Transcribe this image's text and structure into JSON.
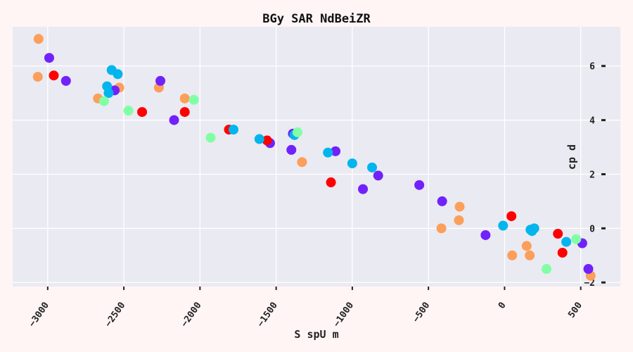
{
  "chart_data": {
    "type": "scatter",
    "title": "BGy SAR NdBeiZR",
    "xlabel": "S spU m",
    "ylabel": "cp d",
    "xlim": [
      -3230,
      760
    ],
    "ylim": [
      -2.15,
      7.45
    ],
    "x_ticks": [
      -3000,
      -2500,
      -2000,
      -1500,
      -1000,
      -500,
      0,
      500
    ],
    "x_tick_labels": [
      "−3000",
      "−2500",
      "−2000",
      "−1500",
      "−1000",
      "−500",
      "0",
      "500"
    ],
    "y_ticks": [
      -2,
      0,
      2,
      4,
      6
    ],
    "y_tick_labels": [
      "−2",
      "0",
      "2",
      "4",
      "6"
    ],
    "grid": true,
    "y_axis_side": "right",
    "background": "#eaeaf2",
    "page_background": "#fff5f5",
    "series": [
      {
        "color": "#fb9f5a",
        "points": [
          [
            -3060,
            7.0
          ],
          [
            -3065,
            5.6
          ],
          [
            -2670,
            4.8
          ],
          [
            -2530,
            5.2
          ],
          [
            -2270,
            5.2
          ],
          [
            -2100,
            4.8
          ],
          [
            -1330,
            2.45
          ],
          [
            -415,
            0.0
          ],
          [
            -300,
            0.3
          ],
          [
            -295,
            0.8
          ],
          [
            50,
            -1.0
          ],
          [
            145,
            -0.65
          ],
          [
            165,
            -1.0
          ],
          [
            565,
            -1.75
          ]
        ]
      },
      {
        "color": "#7122fa",
        "points": [
          [
            -2990,
            6.3
          ],
          [
            -2880,
            5.45
          ],
          [
            -2560,
            5.1
          ],
          [
            -2260,
            5.45
          ],
          [
            -2170,
            4.0
          ],
          [
            -1540,
            3.15
          ],
          [
            -1390,
            3.5
          ],
          [
            -1400,
            2.9
          ],
          [
            -1110,
            2.85
          ],
          [
            -930,
            1.45
          ],
          [
            -830,
            1.95
          ],
          [
            -560,
            1.6
          ],
          [
            -410,
            1.0
          ],
          [
            -125,
            -0.25
          ],
          [
            510,
            -0.55
          ],
          [
            550,
            -1.5
          ]
        ]
      },
      {
        "color": "#ff0000",
        "points": [
          [
            -2960,
            5.65
          ],
          [
            -2380,
            4.3
          ],
          [
            -2100,
            4.3
          ],
          [
            -1810,
            3.65
          ],
          [
            -1560,
            3.25
          ],
          [
            -1140,
            1.7
          ],
          [
            45,
            0.45
          ],
          [
            350,
            -0.2
          ],
          [
            380,
            -0.9
          ]
        ]
      },
      {
        "color": "#02b5ec",
        "points": [
          [
            -2580,
            5.85
          ],
          [
            -2540,
            5.7
          ],
          [
            -2610,
            5.25
          ],
          [
            -2600,
            5.0
          ],
          [
            -1780,
            3.65
          ],
          [
            -1610,
            3.3
          ],
          [
            -1380,
            3.45
          ],
          [
            -1160,
            2.8
          ],
          [
            -1000,
            2.4
          ],
          [
            -870,
            2.25
          ],
          [
            -10,
            0.1
          ],
          [
            170,
            -0.05
          ],
          [
            195,
            0.0
          ],
          [
            180,
            -0.1
          ],
          [
            405,
            -0.5
          ]
        ]
      },
      {
        "color": "#80ffa5",
        "points": [
          [
            -2630,
            4.7
          ],
          [
            -2470,
            4.35
          ],
          [
            -2040,
            4.75
          ],
          [
            -1930,
            3.35
          ],
          [
            -1360,
            3.55
          ],
          [
            275,
            -1.5
          ],
          [
            470,
            -0.4
          ]
        ]
      }
    ]
  }
}
